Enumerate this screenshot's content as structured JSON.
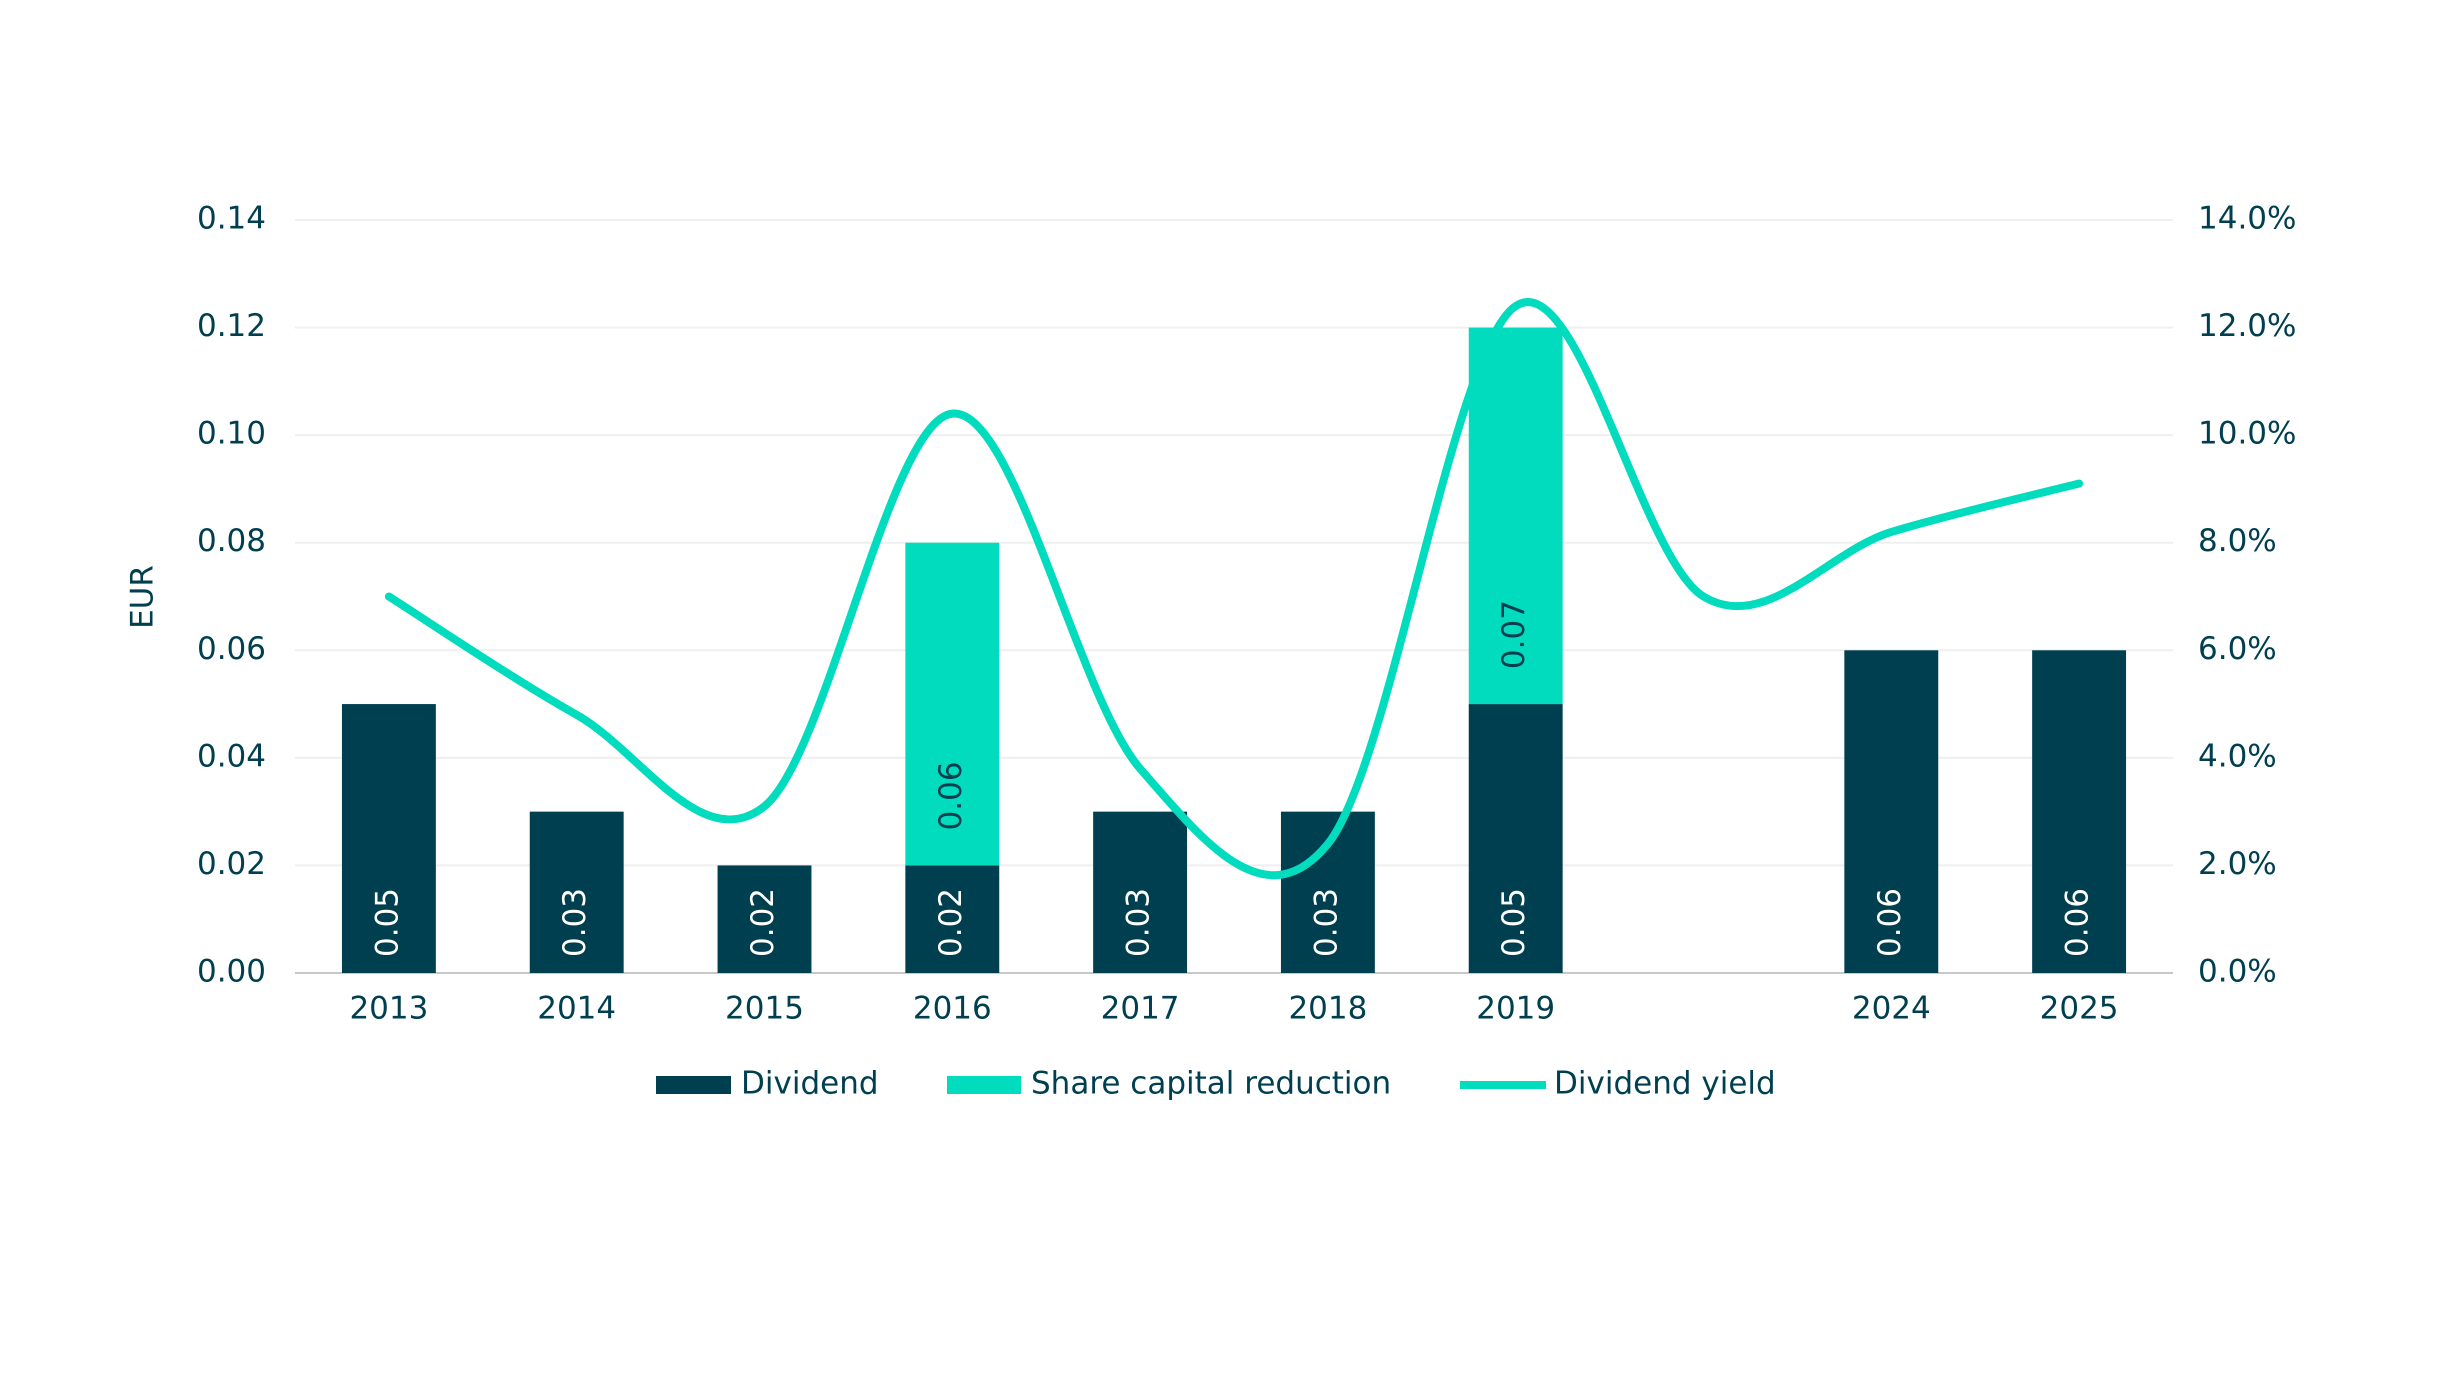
{
  "chart_data": {
    "type": "bar",
    "categories": [
      "2013",
      "2014",
      "2015",
      "2016",
      "2017",
      "2018",
      "2019",
      null,
      "2024",
      "2025"
    ],
    "series": [
      {
        "name": "Dividend",
        "color": "#003f4f",
        "values": [
          0.05,
          0.03,
          0.02,
          0.02,
          0.03,
          0.03,
          0.05,
          null,
          0.06,
          0.06
        ]
      },
      {
        "name": "Share capital reduction",
        "color": "#00dcbd",
        "values": [
          null,
          null,
          null,
          0.06,
          null,
          null,
          0.07,
          null,
          null,
          null
        ]
      },
      {
        "name": "Dividend yield",
        "color": "#00dcbd",
        "type": "line",
        "axis": "y2",
        "values": [
          7.0,
          4.8,
          3.1,
          10.4,
          3.8,
          2.4,
          12.4,
          7.0,
          8.2,
          9.1
        ]
      }
    ],
    "y_label": "EUR",
    "ylim": [
      0,
      0.14
    ],
    "yticks": [
      {
        "value": 0,
        "label": "0.00"
      },
      0.02,
      0.04,
      0.06,
      0.08,
      {
        "value": 0.1,
        "label": "0.10"
      },
      0.12,
      0.14
    ],
    "y2lim": [
      0,
      14
    ],
    "y2ticks": [
      {
        "value": 0,
        "label": "0.0%"
      },
      {
        "value": 2,
        "label": "2.0%"
      },
      {
        "value": 4,
        "label": "4.0%"
      },
      {
        "value": 6,
        "label": "6.0%"
      },
      {
        "value": 8,
        "label": "8.0%"
      },
      {
        "value": 10,
        "label": "10.0%"
      },
      {
        "value": 12,
        "label": "12.0%"
      },
      {
        "value": 14,
        "label": "14.0%"
      }
    ],
    "grid": true,
    "legend": "bottom"
  }
}
